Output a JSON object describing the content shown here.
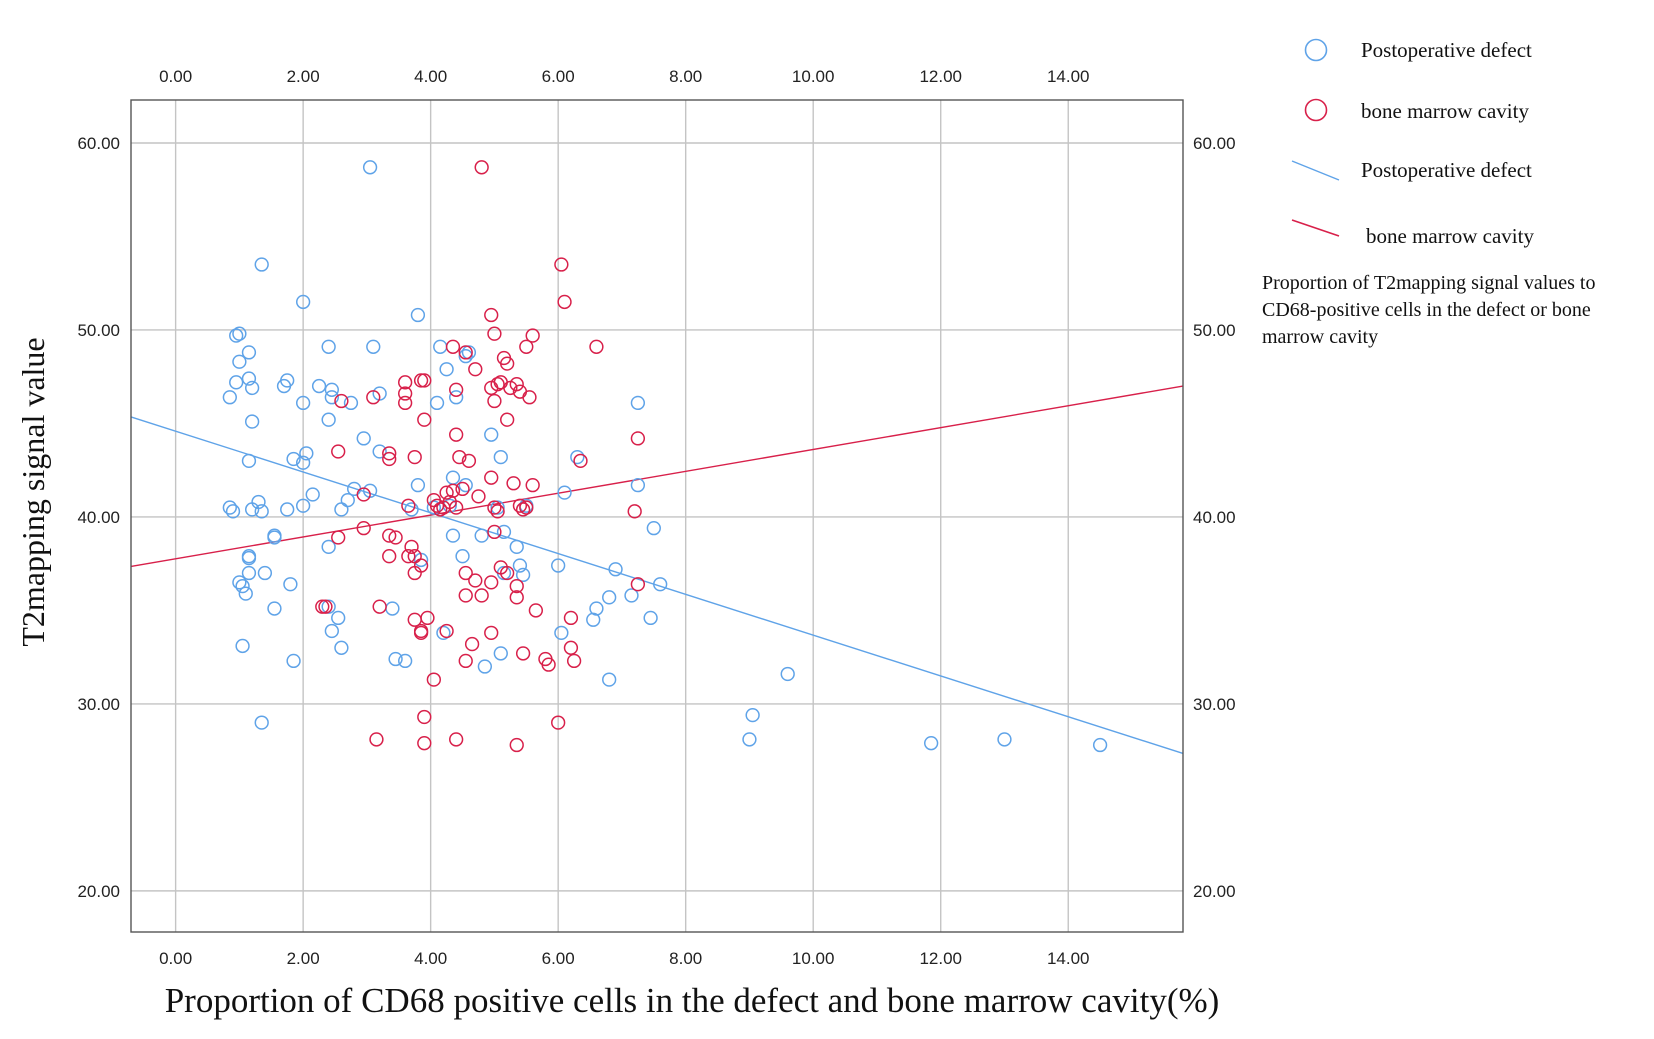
{
  "chart_data": {
    "type": "scatter",
    "xlabel": "Proportion of CD68 positive cells in the defect and bone marrow cavity(%)",
    "ylabel": "T2mapping signal value",
    "xlim": [
      -0.7,
      15.8
    ],
    "ylim": [
      17.8,
      62.3
    ],
    "x_ticks": [
      "0.00",
      "2.00",
      "4.00",
      "6.00",
      "8.00",
      "10.00",
      "12.00",
      "14.00"
    ],
    "y_ticks": [
      "20.00",
      "30.00",
      "40.00",
      "50.00",
      "60.00"
    ],
    "grid": true,
    "legend_position": "right",
    "legend": {
      "items": [
        "Postoperative defect",
        "bone marrow cavity",
        "Postoperative defect",
        "bone marrow cavity"
      ],
      "caption": "Proportion of T2mapping signal values to CD68-positive cells in the defect or bone marrow cavity"
    },
    "colors": {
      "defect": "#5fa3e8",
      "marrow": "#d8204a",
      "grid": "#c4c4c4",
      "frame": "#555555"
    },
    "series": [
      {
        "name": "Postoperative defect",
        "marker": "circle-open",
        "color": "#5fa3e8",
        "points": [
          [
            3.05,
            58.7
          ],
          [
            1.35,
            53.5
          ],
          [
            2.0,
            51.5
          ],
          [
            3.8,
            50.8
          ],
          [
            1.0,
            49.8
          ],
          [
            0.95,
            49.7
          ],
          [
            2.4,
            49.1
          ],
          [
            3.1,
            49.1
          ],
          [
            4.15,
            49.1
          ],
          [
            1.15,
            48.8
          ],
          [
            1.0,
            48.3
          ],
          [
            4.55,
            48.6
          ],
          [
            4.25,
            47.9
          ],
          [
            1.15,
            47.4
          ],
          [
            0.95,
            47.2
          ],
          [
            1.75,
            47.3
          ],
          [
            1.7,
            47.0
          ],
          [
            1.2,
            46.9
          ],
          [
            2.25,
            47.0
          ],
          [
            2.45,
            46.8
          ],
          [
            2.45,
            46.4
          ],
          [
            0.85,
            46.4
          ],
          [
            2.0,
            46.1
          ],
          [
            2.75,
            46.1
          ],
          [
            3.2,
            46.6
          ],
          [
            4.1,
            46.1
          ],
          [
            4.4,
            46.4
          ],
          [
            7.25,
            46.1
          ],
          [
            1.2,
            45.1
          ],
          [
            2.4,
            45.2
          ],
          [
            2.95,
            44.2
          ],
          [
            4.95,
            44.4
          ],
          [
            3.2,
            43.5
          ],
          [
            1.85,
            43.1
          ],
          [
            1.15,
            43.0
          ],
          [
            2.05,
            43.4
          ],
          [
            2.0,
            42.9
          ],
          [
            5.1,
            43.2
          ],
          [
            6.3,
            43.2
          ],
          [
            4.35,
            42.1
          ],
          [
            2.15,
            41.2
          ],
          [
            2.8,
            41.5
          ],
          [
            3.05,
            41.4
          ],
          [
            3.8,
            41.7
          ],
          [
            4.55,
            41.7
          ],
          [
            6.1,
            41.3
          ],
          [
            7.25,
            41.7
          ],
          [
            0.85,
            40.5
          ],
          [
            0.9,
            40.3
          ],
          [
            1.2,
            40.4
          ],
          [
            1.3,
            40.8
          ],
          [
            1.35,
            40.3
          ],
          [
            1.75,
            40.4
          ],
          [
            2.0,
            40.6
          ],
          [
            2.6,
            40.4
          ],
          [
            2.7,
            40.9
          ],
          [
            3.7,
            40.4
          ],
          [
            4.05,
            40.5
          ],
          [
            4.3,
            40.6
          ],
          [
            5.05,
            40.5
          ],
          [
            5.5,
            40.6
          ],
          [
            1.55,
            39.0
          ],
          [
            1.55,
            38.9
          ],
          [
            2.4,
            38.4
          ],
          [
            4.35,
            39.0
          ],
          [
            4.8,
            39.0
          ],
          [
            5.15,
            39.2
          ],
          [
            7.5,
            39.4
          ],
          [
            1.15,
            37.9
          ],
          [
            1.15,
            37.8
          ],
          [
            4.5,
            37.9
          ],
          [
            3.85,
            37.7
          ],
          [
            6.0,
            37.4
          ],
          [
            5.4,
            37.4
          ],
          [
            1.15,
            37.0
          ],
          [
            1.4,
            37.0
          ],
          [
            5.15,
            37.0
          ],
          [
            5.45,
            36.9
          ],
          [
            6.9,
            37.2
          ],
          [
            7.6,
            36.4
          ],
          [
            1.0,
            36.5
          ],
          [
            1.05,
            36.3
          ],
          [
            1.1,
            35.9
          ],
          [
            1.8,
            36.4
          ],
          [
            7.15,
            35.8
          ],
          [
            6.8,
            35.7
          ],
          [
            6.6,
            35.1
          ],
          [
            6.55,
            34.5
          ],
          [
            7.45,
            34.6
          ],
          [
            1.55,
            35.1
          ],
          [
            2.4,
            35.2
          ],
          [
            2.55,
            34.6
          ],
          [
            2.45,
            33.9
          ],
          [
            2.6,
            33.0
          ],
          [
            6.05,
            33.8
          ],
          [
            4.2,
            33.8
          ],
          [
            1.05,
            33.1
          ],
          [
            3.45,
            32.4
          ],
          [
            3.6,
            32.3
          ],
          [
            4.85,
            32.0
          ],
          [
            5.1,
            32.7
          ],
          [
            1.85,
            32.3
          ],
          [
            6.8,
            31.3
          ],
          [
            9.6,
            31.6
          ],
          [
            9.05,
            29.4
          ],
          [
            1.35,
            29.0
          ],
          [
            9.0,
            28.1
          ],
          [
            11.85,
            27.9
          ],
          [
            13.0,
            28.1
          ],
          [
            14.5,
            27.8
          ],
          [
            3.4,
            35.1
          ],
          [
            5.35,
            38.4
          ],
          [
            4.6,
            48.8
          ]
        ],
        "fit_line": {
          "x": [
            -0.7,
            15.8
          ],
          "y": [
            45.35,
            27.35
          ]
        }
      },
      {
        "name": "bone marrow cavity",
        "marker": "circle-open",
        "color": "#d8204a",
        "points": [
          [
            4.8,
            58.7
          ],
          [
            6.05,
            53.5
          ],
          [
            6.1,
            51.5
          ],
          [
            4.95,
            50.8
          ],
          [
            5.0,
            49.8
          ],
          [
            5.6,
            49.7
          ],
          [
            4.35,
            49.1
          ],
          [
            5.5,
            49.1
          ],
          [
            6.6,
            49.1
          ],
          [
            4.55,
            48.8
          ],
          [
            5.15,
            48.5
          ],
          [
            5.2,
            48.2
          ],
          [
            4.7,
            47.9
          ],
          [
            3.6,
            47.2
          ],
          [
            3.85,
            47.3
          ],
          [
            5.1,
            47.2
          ],
          [
            5.05,
            47.1
          ],
          [
            5.25,
            46.9
          ],
          [
            5.35,
            47.1
          ],
          [
            4.95,
            46.9
          ],
          [
            5.4,
            46.7
          ],
          [
            3.6,
            46.6
          ],
          [
            3.1,
            46.4
          ],
          [
            5.55,
            46.4
          ],
          [
            2.6,
            46.2
          ],
          [
            3.6,
            46.1
          ],
          [
            5.0,
            46.2
          ],
          [
            4.4,
            46.8
          ],
          [
            3.9,
            45.2
          ],
          [
            5.2,
            45.2
          ],
          [
            7.25,
            44.2
          ],
          [
            4.4,
            44.4
          ],
          [
            2.55,
            43.5
          ],
          [
            3.35,
            43.4
          ],
          [
            3.35,
            43.1
          ],
          [
            3.75,
            43.2
          ],
          [
            4.45,
            43.2
          ],
          [
            4.6,
            43.0
          ],
          [
            6.35,
            43.0
          ],
          [
            4.95,
            42.1
          ],
          [
            5.3,
            41.8
          ],
          [
            5.6,
            41.7
          ],
          [
            4.25,
            41.3
          ],
          [
            4.35,
            41.4
          ],
          [
            4.75,
            41.1
          ],
          [
            4.5,
            41.5
          ],
          [
            2.95,
            41.2
          ],
          [
            4.05,
            40.9
          ],
          [
            4.1,
            40.6
          ],
          [
            4.2,
            40.5
          ],
          [
            4.4,
            40.5
          ],
          [
            4.15,
            40.4
          ],
          [
            5.0,
            40.5
          ],
          [
            5.05,
            40.3
          ],
          [
            5.4,
            40.6
          ],
          [
            5.45,
            40.4
          ],
          [
            5.5,
            40.5
          ],
          [
            7.2,
            40.3
          ],
          [
            3.65,
            40.6
          ],
          [
            2.95,
            39.4
          ],
          [
            3.35,
            39.0
          ],
          [
            3.45,
            38.9
          ],
          [
            2.55,
            38.9
          ],
          [
            3.7,
            38.4
          ],
          [
            3.75,
            37.9
          ],
          [
            3.85,
            37.4
          ],
          [
            3.75,
            37.0
          ],
          [
            4.55,
            37.0
          ],
          [
            5.1,
            37.3
          ],
          [
            5.2,
            37.0
          ],
          [
            3.65,
            37.9
          ],
          [
            3.35,
            37.9
          ],
          [
            4.7,
            36.6
          ],
          [
            4.95,
            36.5
          ],
          [
            5.35,
            36.3
          ],
          [
            7.25,
            36.4
          ],
          [
            4.55,
            35.8
          ],
          [
            4.8,
            35.8
          ],
          [
            5.35,
            35.7
          ],
          [
            5.65,
            35.0
          ],
          [
            2.3,
            35.2
          ],
          [
            2.35,
            35.2
          ],
          [
            3.2,
            35.2
          ],
          [
            3.75,
            34.5
          ],
          [
            3.95,
            34.6
          ],
          [
            3.85,
            33.8
          ],
          [
            4.25,
            33.9
          ],
          [
            4.95,
            33.8
          ],
          [
            6.2,
            34.6
          ],
          [
            4.65,
            33.2
          ],
          [
            6.2,
            33.0
          ],
          [
            5.45,
            32.7
          ],
          [
            4.55,
            32.3
          ],
          [
            5.8,
            32.4
          ],
          [
            5.85,
            32.1
          ],
          [
            6.25,
            32.3
          ],
          [
            4.05,
            31.3
          ],
          [
            3.9,
            29.3
          ],
          [
            6.0,
            29.0
          ],
          [
            3.15,
            28.1
          ],
          [
            3.9,
            27.9
          ],
          [
            4.4,
            28.1
          ],
          [
            5.35,
            27.8
          ],
          [
            3.85,
            33.9
          ],
          [
            4.3,
            40.8
          ],
          [
            5.0,
            39.2
          ],
          [
            3.9,
            47.3
          ]
        ],
        "fit_line": {
          "x": [
            -0.7,
            15.8
          ],
          "y": [
            37.35,
            47.0
          ]
        }
      }
    ]
  }
}
